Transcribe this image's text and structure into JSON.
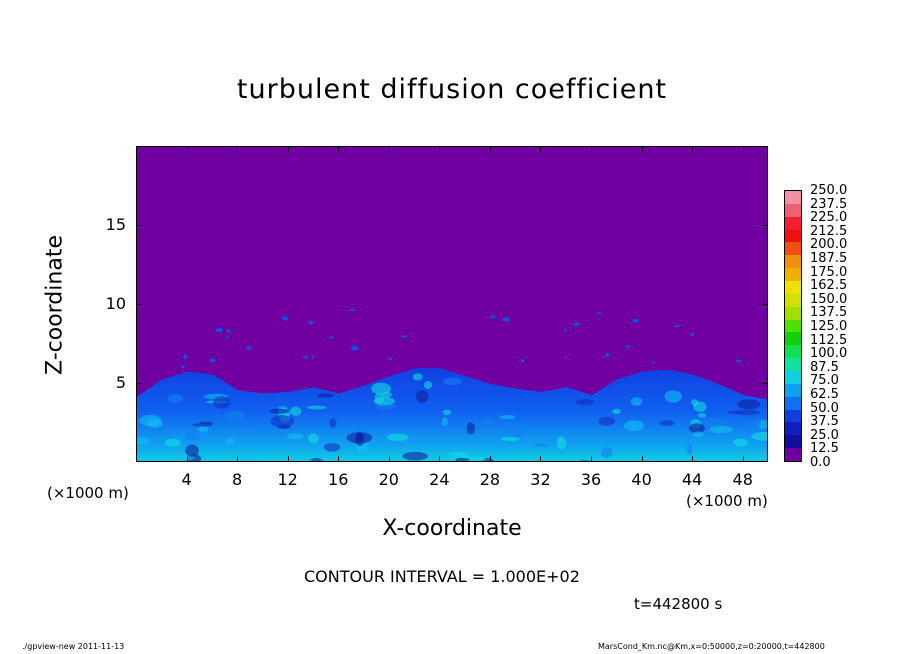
{
  "chart_data": {
    "type": "heatmap",
    "title": "turbulent diffusion coefficient",
    "xlabel": "X-coordinate",
    "ylabel": "Z-coordinate",
    "x_unit": "(×1000 m)",
    "y_unit": "(×1000 m)",
    "xlim": [
      0,
      50
    ],
    "ylim": [
      0,
      20
    ],
    "x_ticks": [
      4,
      8,
      12,
      16,
      20,
      24,
      28,
      32,
      36,
      40,
      44,
      48
    ],
    "y_ticks": [
      5,
      10,
      15
    ],
    "contour_interval": "CONTOUR INTERVAL = 1.000E+02",
    "time_label": "t=442800 s",
    "background_color": "#7000a0",
    "boundary_layer_top_km": [
      {
        "x": 0,
        "z": 4.2
      },
      {
        "x": 2,
        "z": 5.3
      },
      {
        "x": 4,
        "z": 5.8
      },
      {
        "x": 6,
        "z": 5.6
      },
      {
        "x": 8,
        "z": 4.6
      },
      {
        "x": 10,
        "z": 4.4
      },
      {
        "x": 12,
        "z": 4.5
      },
      {
        "x": 14,
        "z": 4.8
      },
      {
        "x": 16,
        "z": 4.4
      },
      {
        "x": 18,
        "z": 4.9
      },
      {
        "x": 20,
        "z": 5.5
      },
      {
        "x": 22,
        "z": 6.0
      },
      {
        "x": 24,
        "z": 6.0
      },
      {
        "x": 26,
        "z": 5.5
      },
      {
        "x": 28,
        "z": 5.0
      },
      {
        "x": 30,
        "z": 4.7
      },
      {
        "x": 32,
        "z": 4.5
      },
      {
        "x": 34,
        "z": 4.8
      },
      {
        "x": 36,
        "z": 4.3
      },
      {
        "x": 38,
        "z": 5.3
      },
      {
        "x": 40,
        "z": 5.8
      },
      {
        "x": 42,
        "z": 5.9
      },
      {
        "x": 44,
        "z": 5.6
      },
      {
        "x": 46,
        "z": 5.0
      },
      {
        "x": 48,
        "z": 4.3
      },
      {
        "x": 50,
        "z": 4.0
      }
    ],
    "colorbar": {
      "levels": [
        "250.0",
        "237.5",
        "225.0",
        "212.5",
        "200.0",
        "187.5",
        "175.0",
        "162.5",
        "150.0",
        "137.5",
        "125.0",
        "112.5",
        "100.0",
        "87.5",
        "75.0",
        "62.5",
        "50.0",
        "37.5",
        "25.0",
        "12.5",
        "0.0"
      ],
      "colors": [
        "#f090a0",
        "#f06070",
        "#f02030",
        "#f01010",
        "#f05010",
        "#f09010",
        "#f0b000",
        "#f0e000",
        "#d0e000",
        "#a0e000",
        "#50e000",
        "#10d010",
        "#10e050",
        "#10e0a0",
        "#10d0e0",
        "#10a0f0",
        "#1070f0",
        "#1040e0",
        "#1020c0",
        "#1010a0",
        "#7000a0"
      ]
    }
  },
  "footer": {
    "left": "./gpview-new  2011-11-13",
    "right": "MarsCond_Km.nc@Km,x=0:50000,z=0:20000,t=442800"
  }
}
